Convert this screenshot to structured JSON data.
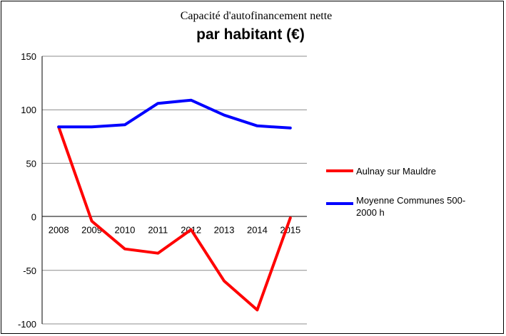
{
  "chart_data": {
    "type": "line",
    "title": "Capacité d'autofinancement  nette",
    "subtitle": "par habitant (€)",
    "xlabel": "",
    "ylabel": "",
    "categories": [
      "2008",
      "2009",
      "2010",
      "2011",
      "2012",
      "2013",
      "2014",
      "2015"
    ],
    "ylim": [
      -100,
      150
    ],
    "yticks": [
      150,
      100,
      50,
      0,
      -50,
      -100
    ],
    "grid": true,
    "legend_position": "right",
    "series": [
      {
        "name": "Aulnay sur Mauldre",
        "color": "#ff0000",
        "values": [
          84,
          -4,
          -30,
          -34,
          -12,
          -60,
          -87,
          -1
        ]
      },
      {
        "name": " Moyenne Communes 500-2000 h",
        "legend_lines": [
          " Moyenne Communes 500-",
          "2000 h"
        ],
        "color": "#0000ff",
        "values": [
          84,
          84,
          86,
          106,
          109,
          95,
          85,
          83
        ]
      }
    ]
  }
}
